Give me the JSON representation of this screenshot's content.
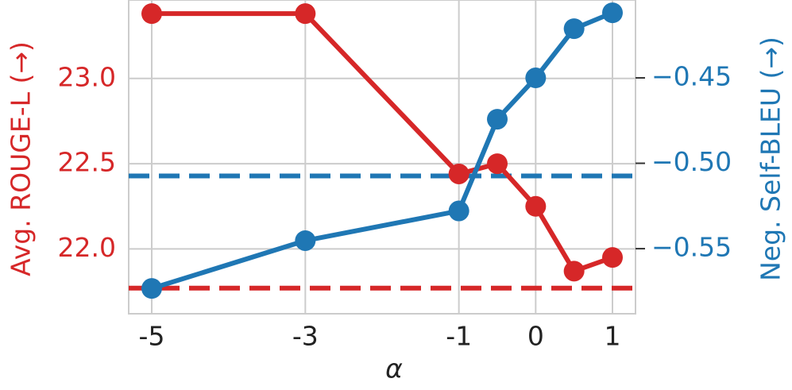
{
  "chart_data": {
    "type": "line",
    "x": [
      -5,
      -3,
      -1,
      -0.5,
      0,
      0.5,
      1
    ],
    "xlabel": "α",
    "ylabel": "Avg. ROUGE-L (→)",
    "y2label": "Neg. Self-BLEU (→)",
    "xlim": [
      -5.3,
      1.3
    ],
    "xticks": [
      -5,
      -3,
      -1,
      0,
      1
    ],
    "ylim": [
      21.62,
      23.46
    ],
    "yticks": [
      {
        "value": 22.0,
        "label": "22.0"
      },
      {
        "value": 22.5,
        "label": "22.5"
      },
      {
        "value": 23.0,
        "label": "23.0"
      }
    ],
    "y2lim": [
      -0.5881,
      -0.4044
    ],
    "y2ticks": [
      {
        "value": -0.55,
        "label": "−0.55"
      },
      {
        "value": -0.5,
        "label": "−0.50"
      },
      {
        "value": -0.45,
        "label": "−0.45"
      }
    ],
    "grid": true,
    "series": [
      {
        "color": "#d62728",
        "axis": "y",
        "values": [
          23.38,
          23.38,
          22.44,
          22.5,
          22.25,
          21.87,
          21.95
        ]
      },
      {
        "color": "#1f77b4",
        "axis": "y2",
        "values": [
          -0.5733,
          -0.5453,
          -0.5279,
          -0.4742,
          -0.45,
          -0.4212,
          -0.4119
        ]
      }
    ],
    "baselines": [
      {
        "axis": "y",
        "color": "#d62728",
        "value": 21.77
      },
      {
        "axis": "y2",
        "color": "#1f77b4",
        "value": -0.5074
      }
    ]
  }
}
